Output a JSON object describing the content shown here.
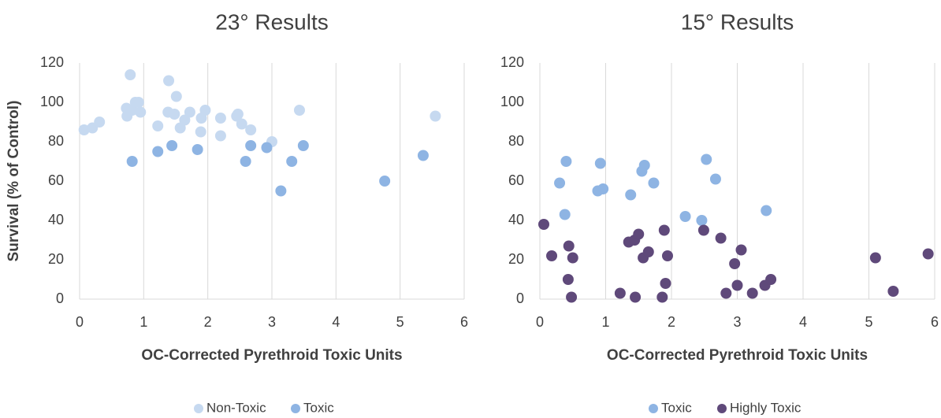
{
  "chart_data": [
    {
      "type": "scatter",
      "title": "23° Results",
      "xlabel": "OC-Corrected Pyrethroid Toxic Units",
      "ylabel": "Survival (% of Control)",
      "xlim": [
        0,
        6
      ],
      "xticks": [
        0,
        1,
        2,
        3,
        4,
        5,
        6
      ],
      "ylim": [
        0,
        120
      ],
      "yticks": [
        0,
        20,
        40,
        60,
        80,
        100,
        120
      ],
      "grid": "x",
      "legend": "bottom",
      "series": [
        {
          "name": "Non-Toxic",
          "color": "#c6d9f0",
          "x": [
            0.07,
            0.2,
            0.31,
            0.79,
            0.73,
            0.74,
            0.82,
            0.87,
            0.92,
            0.95,
            1.39,
            1.38,
            1.51,
            1.48,
            1.22,
            1.57,
            1.64,
            1.72,
            1.9,
            1.96,
            1.89,
            2.2,
            2.2,
            2.45,
            2.47,
            2.53,
            2.67,
            3.0,
            3.43,
            5.55
          ],
          "values": [
            86,
            87,
            90,
            114,
            97,
            93,
            96,
            100,
            100,
            95,
            111,
            95,
            103,
            94,
            88,
            87,
            91,
            95,
            92,
            96,
            85,
            83,
            92,
            93,
            94,
            89,
            86,
            80,
            96,
            93
          ]
        },
        {
          "name": "Toxic",
          "color": "#8eb4e3",
          "x": [
            0.82,
            1.22,
            1.44,
            1.84,
            2.67,
            2.92,
            2.59,
            3.14,
            3.31,
            3.49,
            4.76,
            5.36
          ],
          "values": [
            70,
            75,
            78,
            76,
            78,
            77,
            70,
            55,
            70,
            78,
            60,
            73
          ]
        }
      ]
    },
    {
      "type": "scatter",
      "title": "15° Results",
      "xlabel": "OC-Corrected Pyrethroid Toxic Units",
      "xlim": [
        0,
        6
      ],
      "xticks": [
        0,
        1,
        2,
        3,
        4,
        5,
        6
      ],
      "ylim": [
        0,
        120
      ],
      "yticks": [
        0,
        20,
        40,
        60,
        80,
        100,
        120
      ],
      "grid": "x",
      "legend": "bottom",
      "series": [
        {
          "name": "Toxic",
          "color": "#8eb4e3",
          "x": [
            0.3,
            0.38,
            0.4,
            0.92,
            0.88,
            0.96,
            1.55,
            1.38,
            1.59,
            1.73,
            2.21,
            2.53,
            2.67,
            2.46,
            3.44
          ],
          "values": [
            59,
            43,
            70,
            69,
            55,
            56,
            65,
            53,
            68,
            59,
            42,
            71,
            61,
            40,
            45
          ]
        },
        {
          "name": "Highly Toxic",
          "color": "#5f497a",
          "x": [
            0.06,
            0.18,
            0.44,
            0.5,
            0.43,
            0.48,
            1.22,
            1.35,
            1.44,
            1.5,
            1.57,
            1.65,
            1.89,
            1.94,
            1.91,
            1.86,
            1.45,
            2.49,
            2.75,
            2.96,
            3.0,
            3.06,
            3.23,
            3.42,
            3.51,
            2.83,
            5.1,
            5.37,
            5.9
          ],
          "values": [
            38,
            22,
            27,
            21,
            10,
            1,
            3,
            29,
            30,
            33,
            21,
            24,
            35,
            22,
            8,
            1,
            1,
            35,
            31,
            18,
            7,
            25,
            3,
            7,
            10,
            3,
            21,
            4,
            23
          ]
        }
      ]
    }
  ]
}
